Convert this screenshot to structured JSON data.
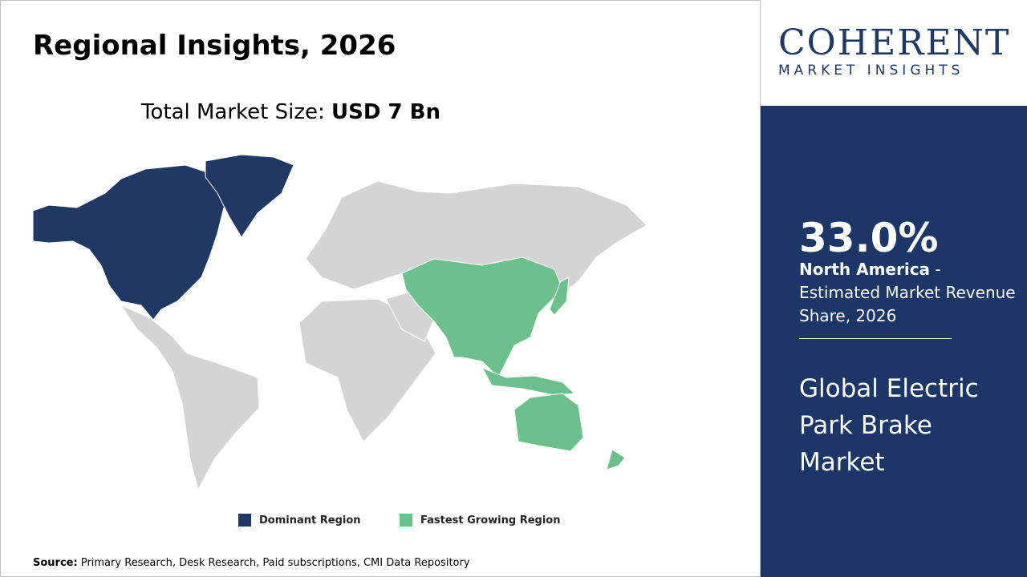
{
  "header": {
    "title": "Regional Insights, 2026"
  },
  "market_size": {
    "label": "Total Market Size:",
    "value": "USD 7 Bn"
  },
  "legend": [
    {
      "label": "Dominant Region",
      "color": "#1f3864"
    },
    {
      "label": "Fastest Growing Region",
      "color": "#6cc08b"
    }
  ],
  "source": {
    "label": "Source:",
    "text": "Primary Research, Desk Research, Paid subscriptions, CMI Data Repository"
  },
  "logo": {
    "line1": "COHERENT",
    "line2": "MARKET INSIGHTS"
  },
  "sidebar": {
    "share": "33.0%",
    "region": "North America",
    "description": " - Estimated Market Revenue Share, 2026",
    "market": "Global Electric Park Brake Market"
  }
}
